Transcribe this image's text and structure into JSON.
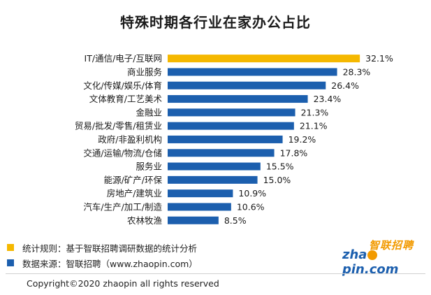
{
  "chart_data": {
    "type": "bar",
    "orientation": "horizontal",
    "title": "特殊时期各行业在家办公占比",
    "categories": [
      "IT/通信/电子/互联网",
      "商业服务",
      "文化/传媒/娱乐/体育",
      "文体教育/工艺美术",
      "金融业",
      "贸易/批发/零售/租赁业",
      "政府/非盈利机构",
      "交通/运输/物流/仓储",
      "服务业",
      "能源/矿产/环保",
      "房地产/建筑业",
      "汽车/生产/加工/制造",
      "农林牧渔"
    ],
    "values": [
      32.1,
      28.3,
      26.4,
      23.4,
      21.3,
      21.1,
      19.2,
      17.8,
      15.5,
      15.0,
      10.9,
      10.6,
      8.5
    ],
    "data_labels": [
      "32.1%",
      "28.3%",
      "26.4%",
      "23.4%",
      "21.3%",
      "21.1%",
      "19.2%",
      "17.8%",
      "15.5%",
      "15.0%",
      "10.9%",
      "10.6%",
      "8.5%"
    ],
    "highlight_index": 0,
    "highlight_color": "#f5b800",
    "bar_color": "#1c5fae",
    "xlim": [
      0,
      35
    ],
    "grid": false,
    "axes_visible": false
  },
  "legend": {
    "rule": {
      "text": "统计规则：基于智联招聘调研数据的统计分析",
      "color": "#f5b800"
    },
    "source": {
      "text": "数据来源：智联招聘（www.zhaopin.com）",
      "color": "#1c5fae"
    }
  },
  "logo": {
    "cn": "智联招聘",
    "en_before": "zha",
    "en_after": "pin.com"
  },
  "footer": {
    "copyright": "Copyright©2020 zhaopin all rights reserved"
  }
}
